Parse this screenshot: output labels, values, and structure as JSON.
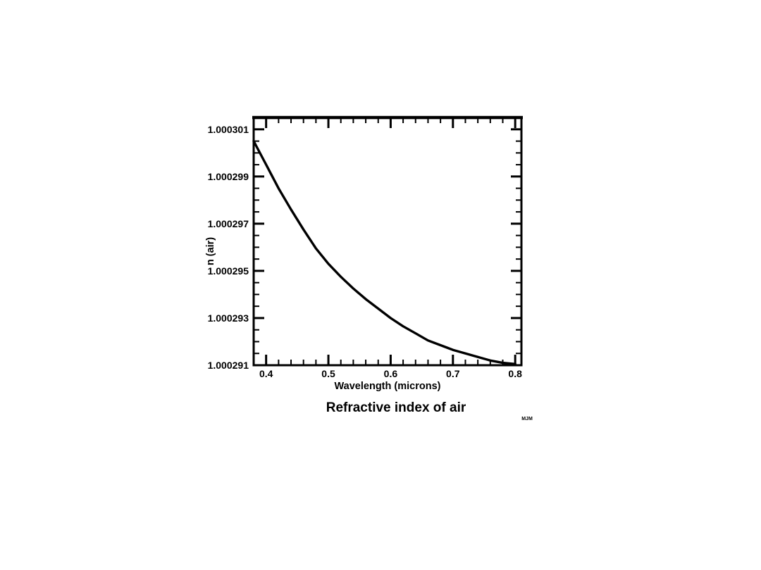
{
  "page": {
    "background": "#ffffff"
  },
  "chart_data": {
    "type": "line",
    "title": "Refractive index of air",
    "xlabel": "Wavelength (microns)",
    "ylabel": "n (air)",
    "watermark": "MJM",
    "grid": false,
    "legend": "none",
    "xlim": [
      0.38,
      0.81
    ],
    "ylim": [
      1.000291,
      1.0003015
    ],
    "x_ticks": {
      "major": [
        0.4,
        0.5,
        0.6,
        0.7,
        0.8
      ],
      "labels": [
        "0.4",
        "0.5",
        "0.6",
        "0.7",
        "0.8"
      ],
      "minor_step": 0.02
    },
    "y_ticks": {
      "major": [
        1.000291,
        1.000293,
        1.000295,
        1.000297,
        1.000299,
        1.000301
      ],
      "labels": [
        "1.000291",
        "1.000293",
        "1.000295",
        "1.000297",
        "1.000299",
        "1.000301"
      ],
      "minor_step": 5e-07
    },
    "colors": {
      "line": "#000000",
      "text": "#000000",
      "background": "#ffffff"
    },
    "series": [
      {
        "name": "n (air)",
        "x": [
          0.38,
          0.4,
          0.42,
          0.44,
          0.46,
          0.48,
          0.5,
          0.52,
          0.54,
          0.56,
          0.58,
          0.6,
          0.62,
          0.64,
          0.66,
          0.68,
          0.7,
          0.72,
          0.74,
          0.76,
          0.78,
          0.8
        ],
        "y": [
          1.0003005,
          1.0002995,
          1.0002985,
          1.0002976,
          1.00029675,
          1.00029595,
          1.0002953,
          1.00029475,
          1.00029425,
          1.0002938,
          1.0002934,
          1.000293,
          1.00029265,
          1.00029235,
          1.00029205,
          1.00029185,
          1.00029165,
          1.0002915,
          1.00029135,
          1.0002912,
          1.0002911,
          1.00029105
        ]
      }
    ]
  }
}
